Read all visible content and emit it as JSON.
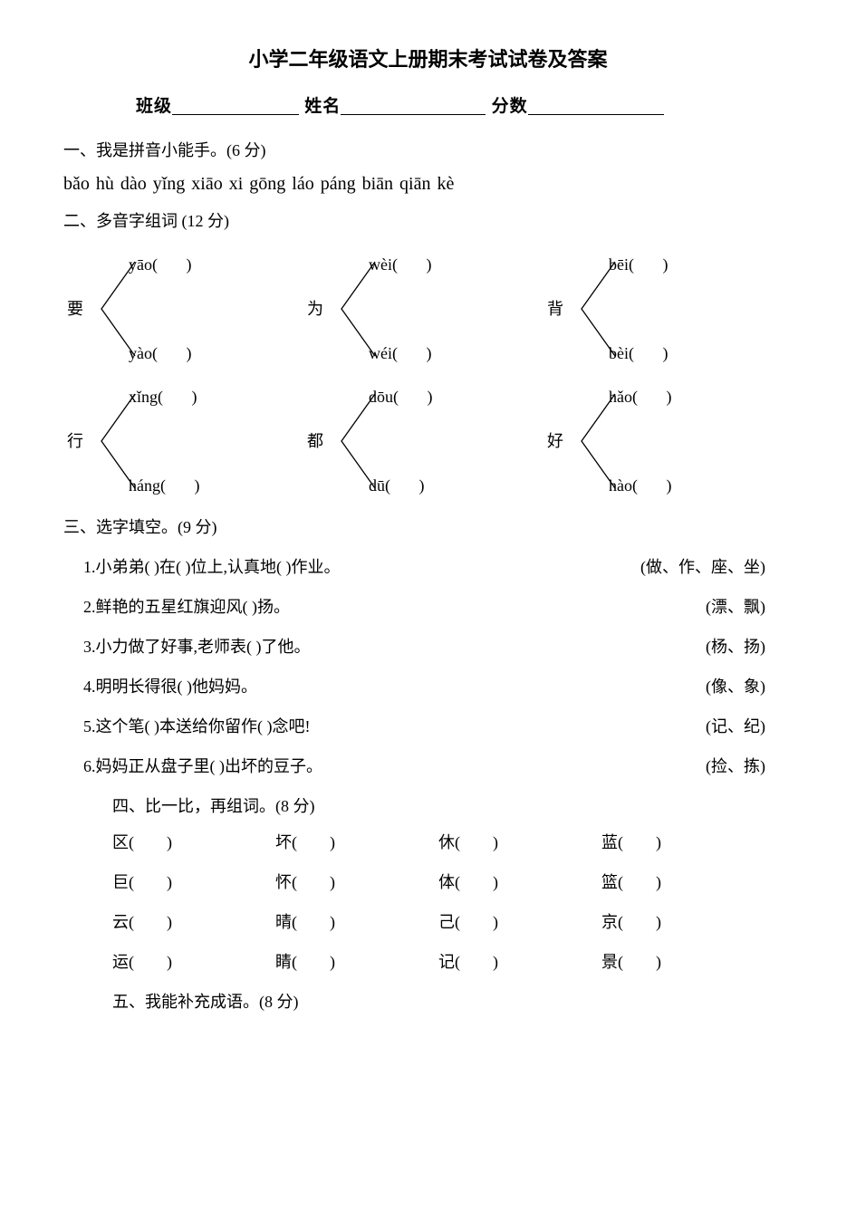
{
  "font_sizes": {
    "title": 22,
    "info": 19,
    "body": 18,
    "pinyin": 20
  },
  "colors": {
    "text": "#000000",
    "background": "#ffffff"
  },
  "title": "小学二年级语文上册期末考试试卷及答案",
  "info_labels": {
    "class": "班级",
    "name": "姓名",
    "score": "分数"
  },
  "underline_widths": {
    "class": 140,
    "name": 160,
    "score": 150
  },
  "q1": {
    "heading": "一、我是拼音小能手。(6 分)",
    "pinyin": "bǎo hù   dào yǐng  xiāo xi  gōng láo  páng biān  qiān kè"
  },
  "q2": {
    "heading": "二、多音字组词 (12 分)",
    "blank": "(       )",
    "groups": [
      {
        "char": "要",
        "top": "yāo",
        "bottom": "yào"
      },
      {
        "char": "为",
        "top": "wèi",
        "bottom": "wéi"
      },
      {
        "char": "背",
        "top": "bēi",
        "bottom": "bèi"
      },
      {
        "char": "行",
        "top": "xǐng",
        "bottom": "háng"
      },
      {
        "char": "都",
        "top": "dōu",
        "bottom": "dū"
      },
      {
        "char": "好",
        "top": "hǎo",
        "bottom": "hào"
      }
    ]
  },
  "q3": {
    "heading": "三、选字填空。(9 分)",
    "items": [
      {
        "text": "1.小弟弟(     )在(     )位上,认真地(    )作业。",
        "options": "(做、作、座、坐)"
      },
      {
        "text": "2.鲜艳的五星红旗迎风(     )扬。",
        "options": "(漂、飘)"
      },
      {
        "text": "3.小力做了好事,老师表(     )了他。",
        "options": "(杨、扬)"
      },
      {
        "text": "4.明明长得很(    )他妈妈。",
        "options": "(像、象)"
      },
      {
        "text": "5.这个笔(    )本送给你留作(     )念吧!",
        "options": "(记、纪)"
      },
      {
        "text": "6.妈妈正从盘子里(     )出坏的豆子。",
        "options": "(捡、拣)"
      }
    ]
  },
  "q4": {
    "heading": "四、比一比，再组词。(8 分)",
    "blank": "(        )",
    "rows": [
      [
        "区",
        "坏",
        "休",
        "蓝"
      ],
      [
        "巨",
        "怀",
        "体",
        "篮"
      ],
      [
        "云",
        "晴",
        "己",
        "京"
      ],
      [
        "运",
        "睛",
        "记",
        "景"
      ]
    ]
  },
  "q5": {
    "heading": "五、我能补充成语。(8 分)"
  }
}
